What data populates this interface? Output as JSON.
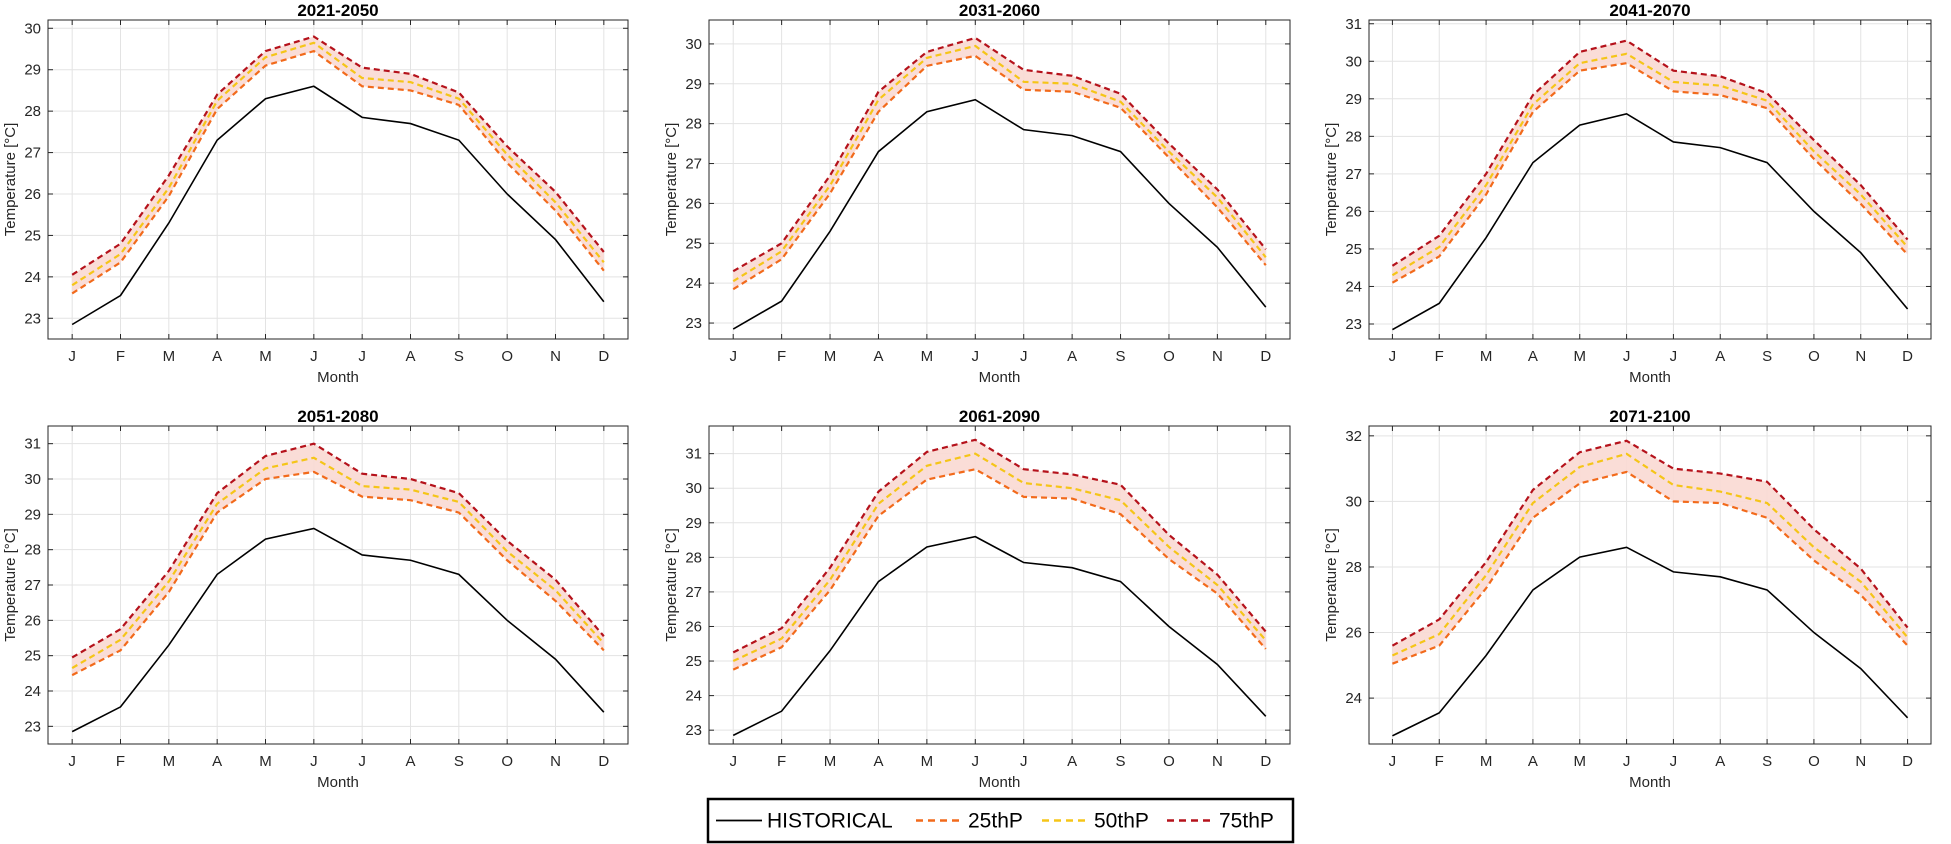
{
  "chart_data": {
    "type": "line",
    "xlabel": "Month",
    "ylabel": "Temperature [°C]",
    "x": [
      "J",
      "F",
      "M",
      "A",
      "M",
      "J",
      "J",
      "A",
      "S",
      "O",
      "N",
      "D"
    ],
    "grid": true,
    "legend": {
      "placement": "bottom-center",
      "entries": [
        {
          "label": "HISTORICAL",
          "color": "#000000",
          "style": "solid"
        },
        {
          "label": "25thP",
          "color": "#f26a1b",
          "style": "dashed"
        },
        {
          "label": "50thP",
          "color": "#f5c518",
          "style": "dashed"
        },
        {
          "label": "75thP",
          "color": "#b5121b",
          "style": "dashed"
        }
      ]
    },
    "band_fill": "#f9d9d3",
    "historical": [
      22.85,
      23.55,
      25.3,
      27.3,
      28.3,
      28.6,
      27.85,
      27.7,
      27.3,
      26.0,
      24.9,
      23.4
    ],
    "panels": [
      {
        "title": "2021-2050",
        "ylim": [
          22.5,
          30.2
        ],
        "yticks": [
          23,
          24,
          25,
          26,
          27,
          28,
          29,
          30
        ],
        "series": [
          {
            "name": "25thP",
            "values": [
              23.6,
              24.35,
              25.95,
              28.05,
              29.1,
              29.45,
              28.6,
              28.5,
              28.15,
              26.75,
              25.6,
              24.15
            ]
          },
          {
            "name": "50thP",
            "values": [
              23.8,
              24.55,
              26.15,
              28.25,
              29.3,
              29.65,
              28.8,
              28.7,
              28.3,
              26.95,
              25.8,
              24.35
            ]
          },
          {
            "name": "75thP",
            "values": [
              24.05,
              24.8,
              26.45,
              28.4,
              29.45,
              29.8,
              29.05,
              28.9,
              28.45,
              27.15,
              26.05,
              24.6
            ]
          }
        ]
      },
      {
        "title": "2031-2060",
        "ylim": [
          22.6,
          30.6
        ],
        "yticks": [
          23,
          24,
          25,
          26,
          27,
          28,
          29,
          30
        ],
        "series": [
          {
            "name": "25thP",
            "values": [
              23.85,
              24.6,
              26.25,
              28.3,
              29.45,
              29.7,
              28.85,
              28.8,
              28.4,
              27.15,
              25.9,
              24.45
            ]
          },
          {
            "name": "50thP",
            "values": [
              24.05,
              24.8,
              26.45,
              28.6,
              29.65,
              29.95,
              29.05,
              29.0,
              28.55,
              27.3,
              26.15,
              24.65
            ]
          },
          {
            "name": "75thP",
            "values": [
              24.3,
              25.0,
              26.7,
              28.8,
              29.8,
              30.15,
              29.35,
              29.2,
              28.75,
              27.5,
              26.35,
              24.85
            ]
          }
        ]
      },
      {
        "title": "2041-2070",
        "ylim": [
          22.6,
          31.1
        ],
        "yticks": [
          23,
          24,
          25,
          26,
          27,
          28,
          29,
          30,
          31
        ],
        "series": [
          {
            "name": "25thP",
            "values": [
              24.1,
              24.8,
              26.45,
              28.65,
              29.75,
              29.95,
              29.2,
              29.1,
              28.75,
              27.4,
              26.2,
              24.85
            ]
          },
          {
            "name": "50thP",
            "values": [
              24.3,
              25.05,
              26.7,
              28.85,
              29.95,
              30.2,
              29.45,
              29.35,
              28.95,
              27.6,
              26.45,
              25.05
            ]
          },
          {
            "name": "75thP",
            "values": [
              24.55,
              25.35,
              27.0,
              29.1,
              30.25,
              30.55,
              29.75,
              29.6,
              29.15,
              27.9,
              26.7,
              25.25
            ]
          }
        ]
      },
      {
        "title": "2051-2080",
        "ylim": [
          22.5,
          31.5
        ],
        "yticks": [
          23,
          24,
          25,
          26,
          27,
          28,
          29,
          30,
          31
        ],
        "series": [
          {
            "name": "25thP",
            "values": [
              24.45,
              25.15,
              26.8,
              29.05,
              30.0,
              30.2,
              29.5,
              29.4,
              29.05,
              27.7,
              26.55,
              25.15
            ]
          },
          {
            "name": "50thP",
            "values": [
              24.65,
              25.45,
              27.1,
              29.3,
              30.3,
              30.6,
              29.8,
              29.7,
              29.35,
              27.95,
              26.85,
              25.35
            ]
          },
          {
            "name": "75thP",
            "values": [
              24.95,
              25.75,
              27.4,
              29.6,
              30.65,
              31.0,
              30.15,
              30.0,
              29.6,
              28.25,
              27.15,
              25.55
            ]
          }
        ]
      },
      {
        "title": "2061-2090",
        "ylim": [
          22.6,
          31.8
        ],
        "yticks": [
          23,
          24,
          25,
          26,
          27,
          28,
          29,
          30,
          31
        ],
        "series": [
          {
            "name": "25thP",
            "values": [
              24.75,
              25.4,
              27.05,
              29.2,
              30.25,
              30.55,
              29.75,
              29.7,
              29.25,
              27.95,
              26.95,
              25.35
            ]
          },
          {
            "name": "50thP",
            "values": [
              25.0,
              25.65,
              27.35,
              29.55,
              30.65,
              31.0,
              30.15,
              30.0,
              29.65,
              28.3,
              27.2,
              25.6
            ]
          },
          {
            "name": "75thP",
            "values": [
              25.25,
              25.95,
              27.7,
              29.9,
              31.05,
              31.4,
              30.55,
              30.4,
              30.1,
              28.65,
              27.5,
              25.85
            ]
          }
        ]
      },
      {
        "title": "2071-2100",
        "ylim": [
          22.6,
          32.3
        ],
        "yticks": [
          24,
          26,
          28,
          30,
          32
        ],
        "series": [
          {
            "name": "25thP",
            "values": [
              25.05,
              25.6,
              27.35,
              29.5,
              30.55,
              30.9,
              30.0,
              29.95,
              29.5,
              28.2,
              27.15,
              25.6
            ]
          },
          {
            "name": "50thP",
            "values": [
              25.3,
              25.95,
              27.75,
              29.95,
              31.05,
              31.45,
              30.5,
              30.3,
              29.95,
              28.6,
              27.55,
              25.85
            ]
          },
          {
            "name": "75thP",
            "values": [
              25.6,
              26.4,
              28.15,
              30.35,
              31.5,
              31.85,
              31.0,
              30.85,
              30.6,
              29.15,
              27.95,
              26.15
            ]
          }
        ]
      }
    ]
  }
}
